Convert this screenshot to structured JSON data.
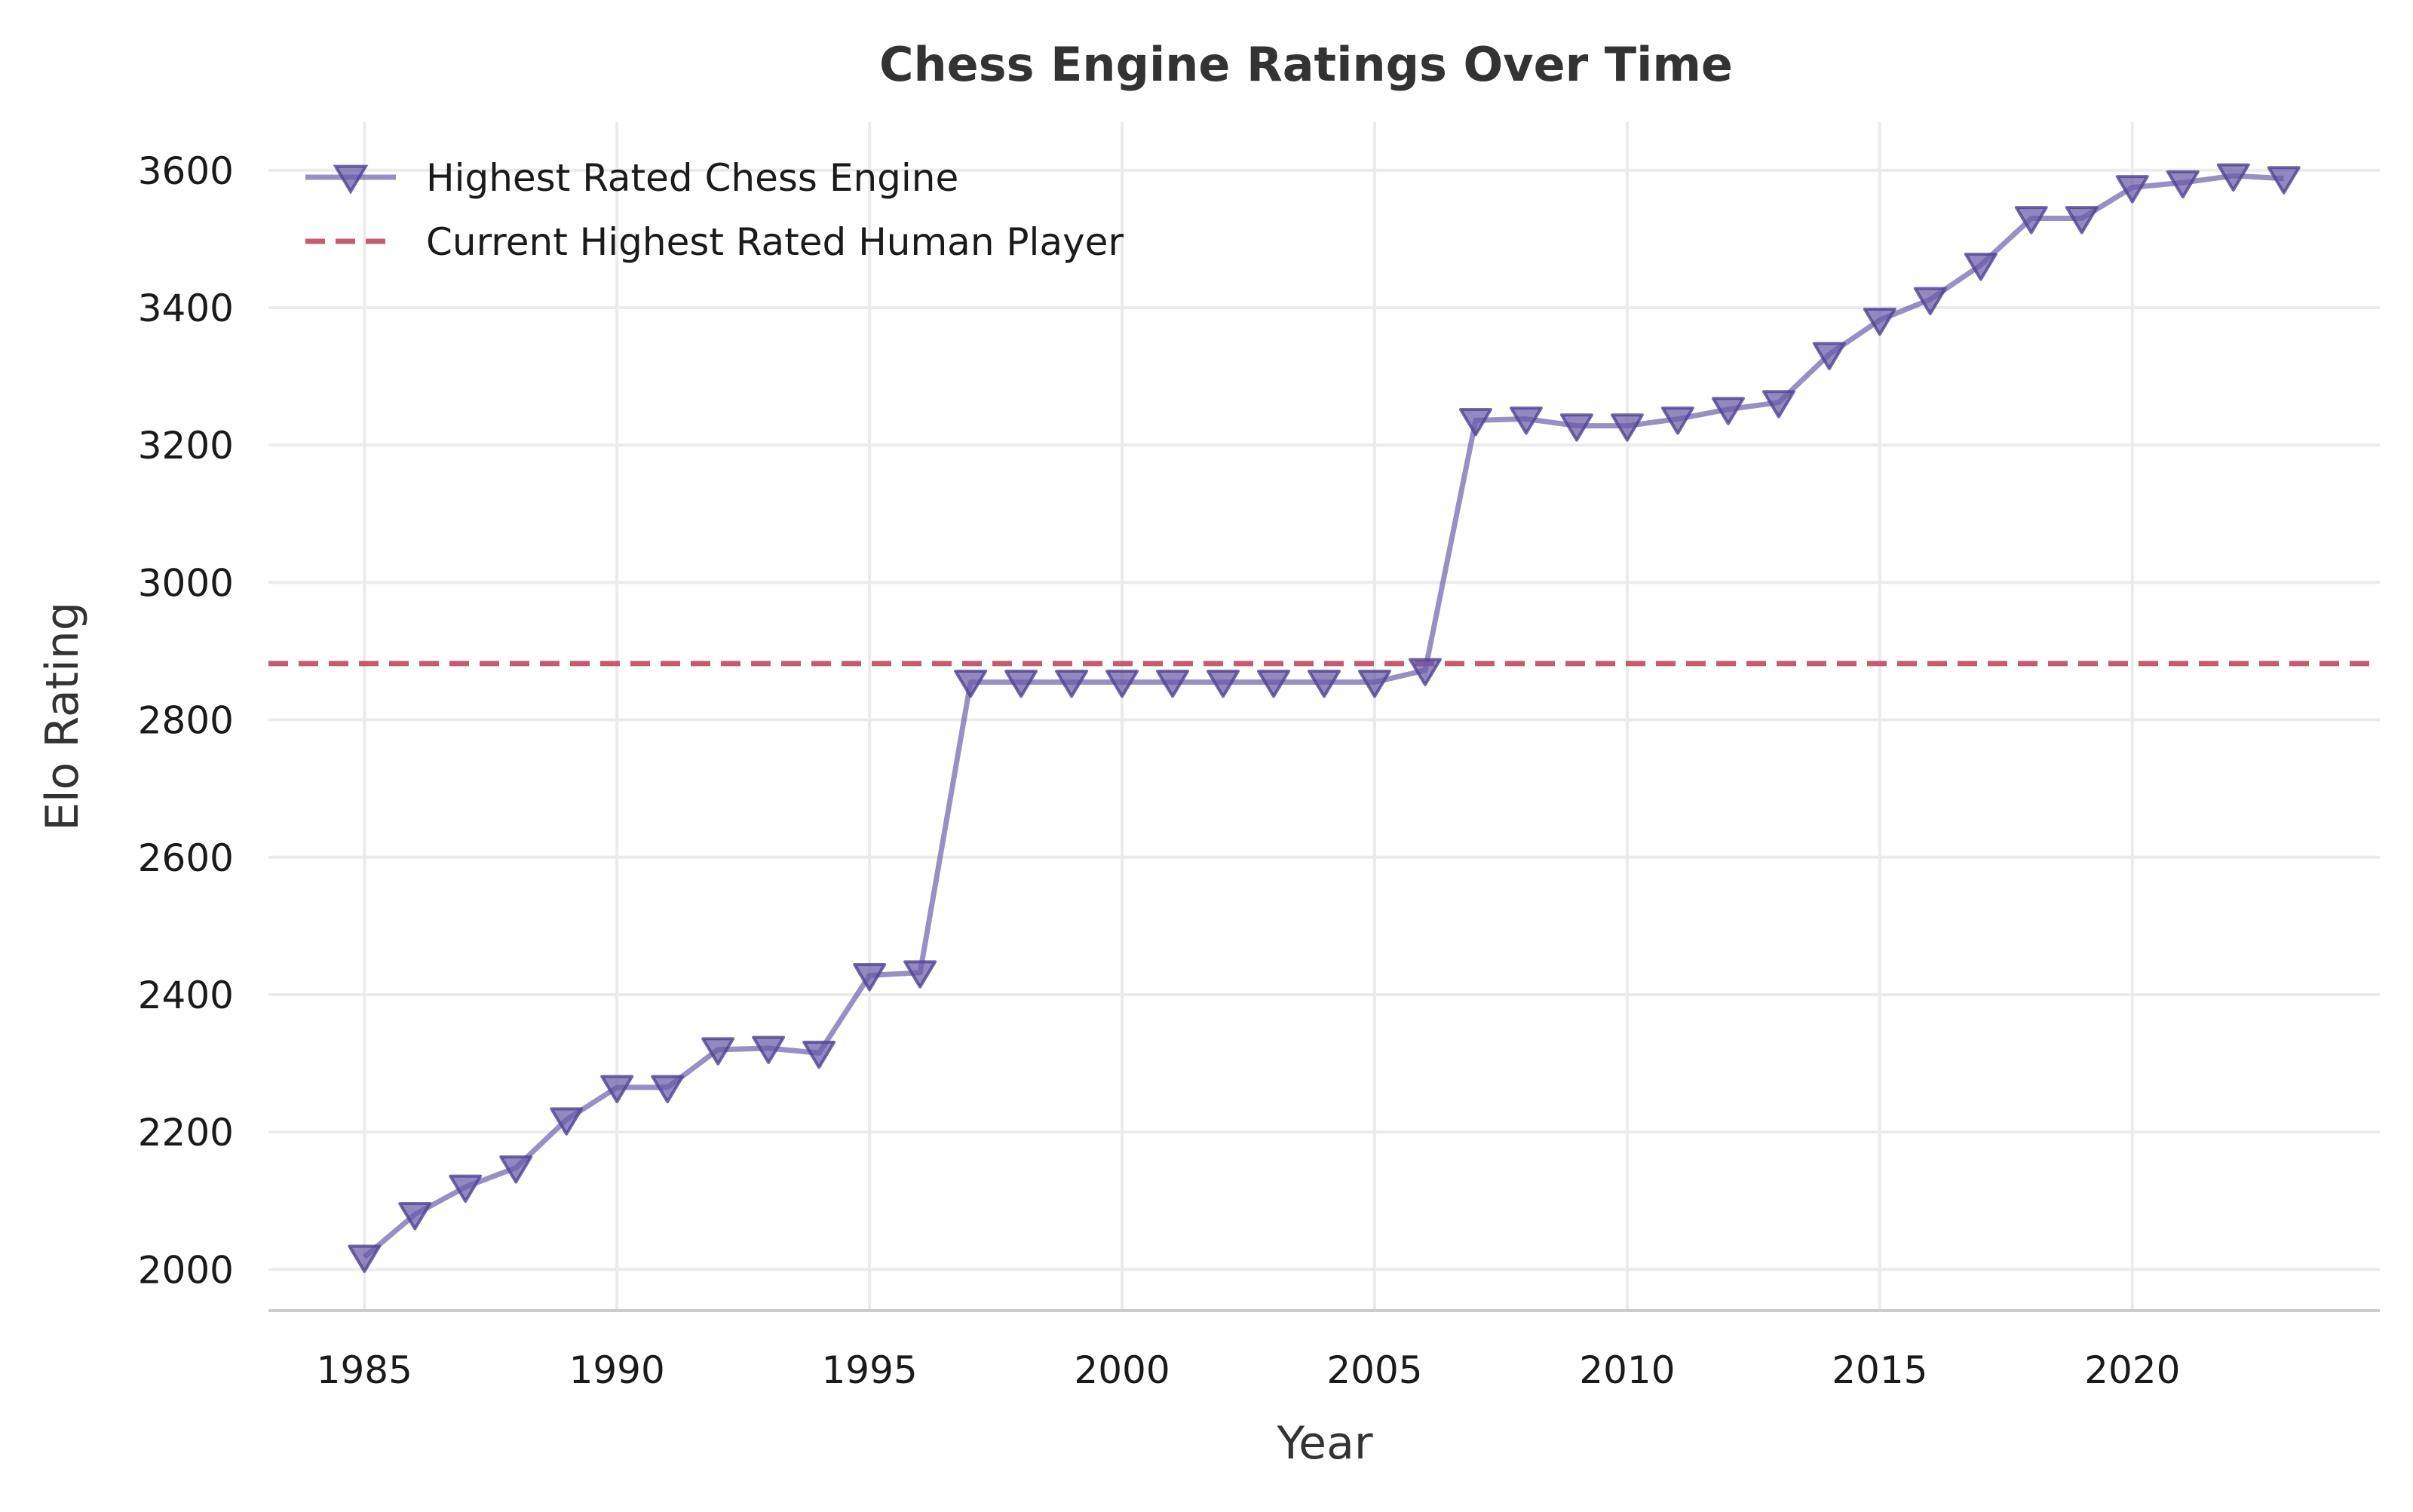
{
  "chart_data": {
    "type": "line",
    "title": "Chess Engine Ratings Over Time",
    "xlabel": "Year",
    "ylabel": "Elo Rating",
    "xlim": [
      1983.1,
      2024.9
    ],
    "ylim": [
      1940,
      3670
    ],
    "xticks": [
      1985,
      1990,
      1995,
      2000,
      2005,
      2010,
      2015,
      2020
    ],
    "yticks": [
      2000,
      2200,
      2400,
      2600,
      2800,
      3000,
      3200,
      3400,
      3600
    ],
    "grid": true,
    "legend_position": "top-left",
    "x": [
      1985,
      1986,
      1987,
      1988,
      1989,
      1990,
      1991,
      1992,
      1993,
      1994,
      1995,
      1996,
      1997,
      1998,
      1999,
      2000,
      2001,
      2002,
      2003,
      2004,
      2005,
      2006,
      2007,
      2008,
      2009,
      2010,
      2011,
      2012,
      2013,
      2014,
      2015,
      2016,
      2017,
      2018,
      2019,
      2020,
      2021,
      2022,
      2023
    ],
    "series": [
      {
        "name": "Highest Rated Chess Engine",
        "color": "#6a5aa8",
        "marker": "triangle-down",
        "values": [
          2018,
          2080,
          2120,
          2148,
          2218,
          2265,
          2265,
          2320,
          2322,
          2315,
          2428,
          2432,
          2855,
          2855,
          2855,
          2855,
          2855,
          2855,
          2855,
          2855,
          2855,
          2872,
          3236,
          3238,
          3228,
          3228,
          3238,
          3252,
          3262,
          3332,
          3382,
          3412,
          3462,
          3530,
          3530,
          3575,
          3582,
          3592,
          3588
        ]
      },
      {
        "name": "Current Highest Rated Human Player",
        "color": "#c45b6e",
        "style": "dashed-horizontal",
        "y": 2882
      }
    ]
  }
}
